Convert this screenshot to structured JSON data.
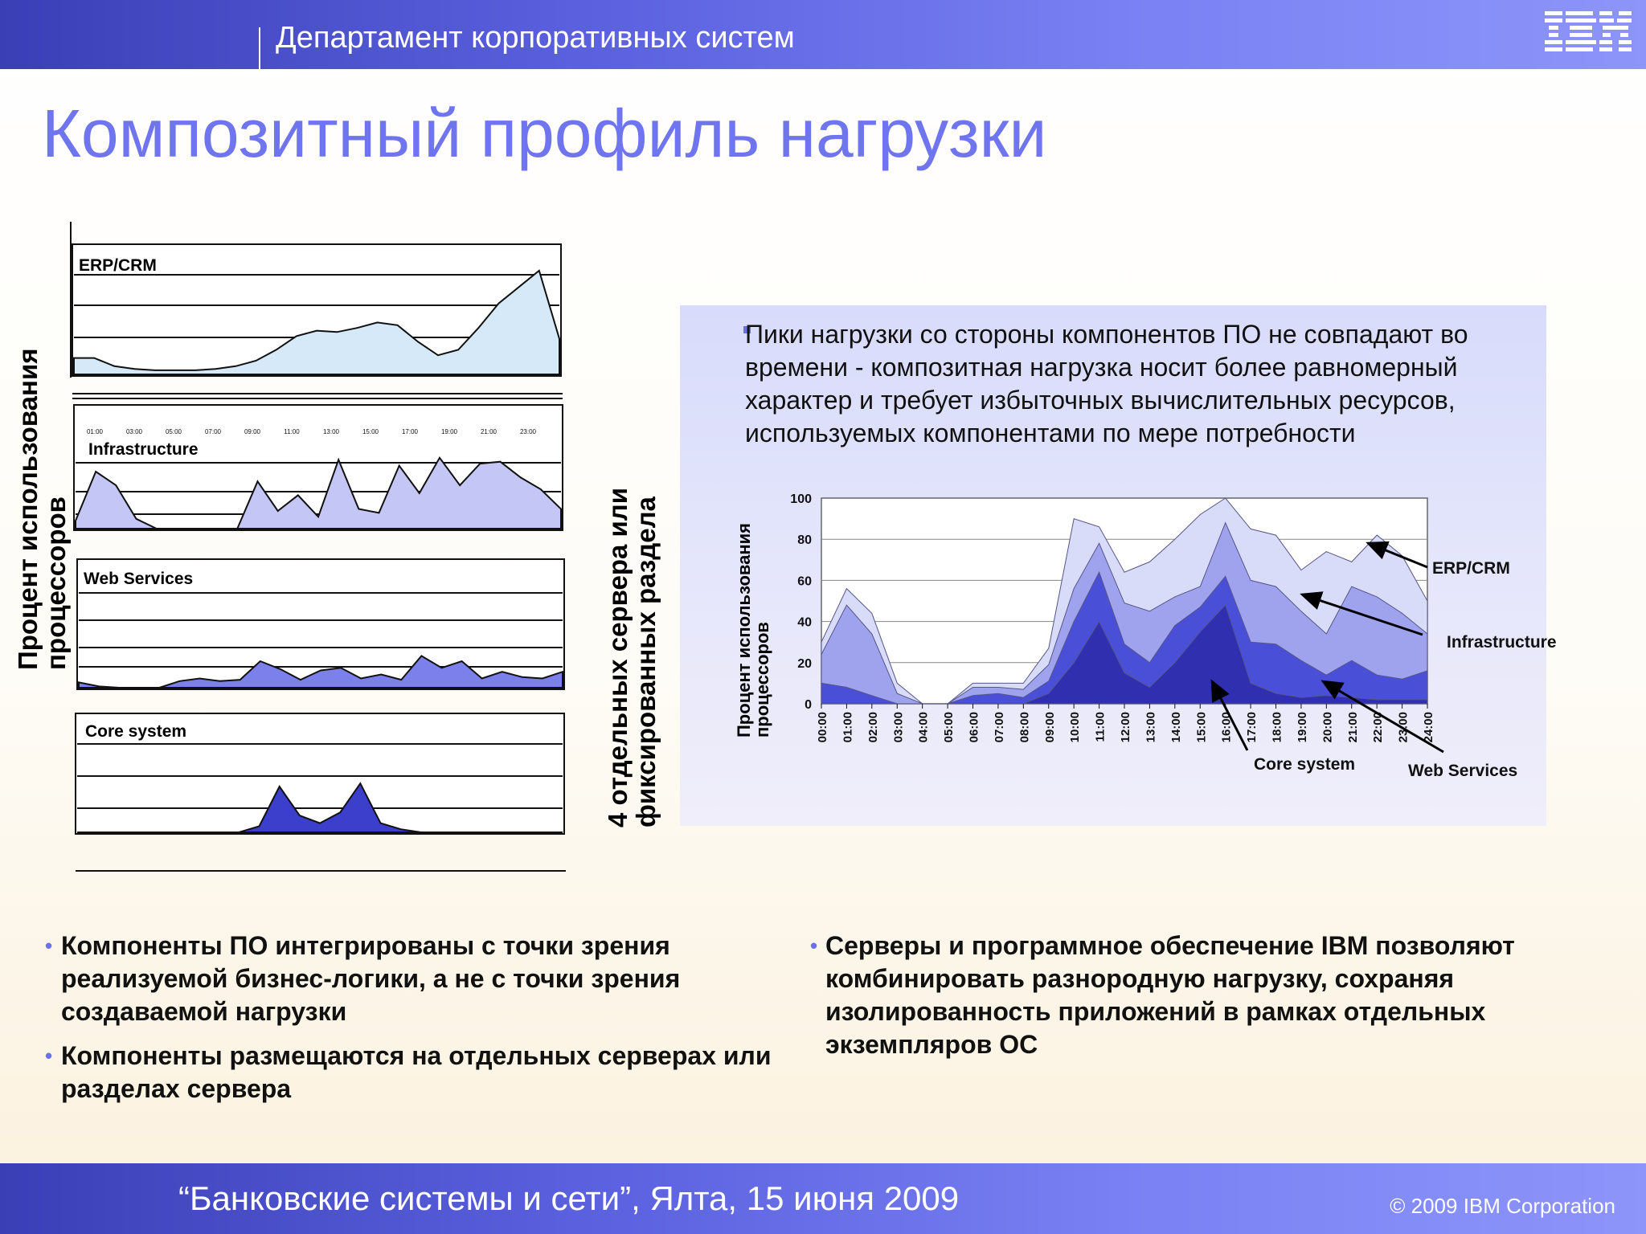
{
  "header": {
    "department": "Департамент корпоративных систем",
    "logo_text": "IBM"
  },
  "title": "Композитный профиль нагрузки",
  "left_axis_label_1": "Процент использования",
  "left_axis_label_2": "процессоров",
  "middle_label_1": "4 отдельных сервера или",
  "middle_label_2": "фиксированных раздела",
  "callout_text": "Пики нагрузки со стороны компонентов ПО  не совпадают во времени - композитная нагрузка носит более равномерный характер и требует избыточных вычислительных  ресурсов, используемых компонентами по мере потребности",
  "bullets_left": [
    "Компоненты ПО интегрированы с точки зрения реализуемой бизнес-логики, а не с точки зрения создаваемой нагрузки",
    "Компоненты размещаются на отдельных серверах или разделах сервера"
  ],
  "bullets_right": [
    "Серверы и программное обеспечение IBM  позволяют комбинировать разнородную нагрузку, сохраняя изолированность приложений в рамках отдельных экземпляров ОС"
  ],
  "footer": {
    "event": "“Банковские системы и сети”, Ялта, 15 июня 2009",
    "copyright": "© 2009 IBM Corporation"
  },
  "colors": {
    "erp": "#d6e9f8",
    "infrastructure": "#c4c6f6",
    "web_services": "#7c80ea",
    "core_system": "#3c3fcc",
    "accent": "#6f74ef"
  },
  "chart_data": [
    {
      "type": "area",
      "panel": "ERP/CRM",
      "label": "ERP/CRM",
      "x_hours": [
        0,
        1,
        2,
        3,
        4,
        5,
        6,
        7,
        8,
        9,
        10,
        11,
        12,
        13,
        14,
        15,
        16,
        17,
        18,
        19,
        20,
        21,
        22,
        23,
        24
      ],
      "values": [
        12,
        12,
        6,
        4,
        3,
        3,
        3,
        4,
        6,
        10,
        18,
        28,
        32,
        31,
        34,
        38,
        36,
        24,
        14,
        18,
        34,
        52,
        64,
        76,
        26
      ]
    },
    {
      "type": "area",
      "panel": "Infrastructure",
      "label": "Infrastructure",
      "tick_labels": [
        "01:00",
        "03:00",
        "05:00",
        "07:00",
        "09:00",
        "11:00",
        "13:00",
        "15:00",
        "17:00",
        "19:00",
        "21:00",
        "23:00"
      ],
      "x_hours": [
        0,
        1,
        2,
        3,
        4,
        5,
        6,
        7,
        8,
        9,
        10,
        11,
        12,
        13,
        14,
        15,
        16,
        17,
        18,
        19,
        20,
        21,
        22,
        23,
        24
      ],
      "values": [
        8,
        58,
        44,
        10,
        0,
        0,
        0,
        0,
        0,
        48,
        18,
        34,
        12,
        70,
        20,
        16,
        64,
        36,
        72,
        44,
        66,
        68,
        52,
        40,
        20
      ]
    },
    {
      "type": "area",
      "panel": "Web Services",
      "label": "Web Services",
      "x_hours": [
        0,
        1,
        2,
        3,
        4,
        5,
        6,
        7,
        8,
        9,
        10,
        11,
        12,
        13,
        14,
        15,
        16,
        17,
        18,
        19,
        20,
        21,
        22,
        23,
        24
      ],
      "values": [
        8,
        2,
        0,
        0,
        0,
        10,
        14,
        10,
        12,
        40,
        28,
        12,
        26,
        30,
        14,
        20,
        12,
        48,
        30,
        40,
        14,
        24,
        16,
        14,
        24
      ]
    },
    {
      "type": "area",
      "panel": "Core system",
      "label": "Core system",
      "x_hours": [
        0,
        1,
        2,
        3,
        4,
        5,
        6,
        7,
        8,
        9,
        10,
        11,
        12,
        13,
        14,
        15,
        16,
        17,
        18,
        19,
        20,
        21,
        22,
        23,
        24
      ],
      "values": [
        0,
        0,
        0,
        0,
        0,
        0,
        0,
        0,
        0,
        8,
        60,
        22,
        12,
        26,
        64,
        12,
        4,
        0,
        0,
        0,
        0,
        0,
        0,
        0,
        0
      ]
    },
    {
      "type": "area",
      "stacked": true,
      "panel": "composite",
      "ylabel_1": "Процент использования",
      "ylabel_2": "процессоров",
      "yticks": [
        "100",
        "80",
        "60",
        "40",
        "20",
        "0"
      ],
      "ylim": [
        0,
        100
      ],
      "x_labels": [
        "00:00",
        "01:00",
        "02:00",
        "03:00",
        "04:00",
        "05:00",
        "06:00",
        "07:00",
        "08:00",
        "09:00",
        "10:00",
        "11:00",
        "12:00",
        "13:00",
        "14:00",
        "15:00",
        "16:00",
        "17:00",
        "18:00",
        "19:00",
        "20:00",
        "21:00",
        "22:00",
        "23:00",
        "24:00"
      ],
      "series": [
        {
          "name": "Core system",
          "values": [
            0,
            0,
            0,
            0,
            0,
            0,
            0,
            0,
            0,
            5,
            20,
            40,
            15,
            8,
            20,
            35,
            48,
            10,
            5,
            3,
            4,
            3,
            2,
            2,
            2
          ]
        },
        {
          "name": "Web Services",
          "values": [
            10,
            8,
            4,
            0,
            0,
            0,
            4,
            5,
            3,
            6,
            20,
            24,
            14,
            12,
            18,
            12,
            14,
            20,
            24,
            18,
            10,
            18,
            12,
            10,
            14
          ]
        },
        {
          "name": "Infrastructure",
          "values": [
            14,
            40,
            30,
            5,
            0,
            0,
            4,
            3,
            4,
            8,
            16,
            14,
            20,
            25,
            14,
            10,
            26,
            30,
            28,
            24,
            20,
            36,
            38,
            32,
            18
          ]
        },
        {
          "name": "ERP/CRM",
          "values": [
            6,
            8,
            10,
            5,
            0,
            0,
            2,
            2,
            3,
            8,
            34,
            8,
            15,
            24,
            28,
            35,
            12,
            25,
            25,
            20,
            40,
            12,
            30,
            28,
            16
          ]
        }
      ],
      "annotations": [
        "ERP/CRM",
        "Infrastructure",
        "Core system",
        "Web Services"
      ]
    }
  ]
}
